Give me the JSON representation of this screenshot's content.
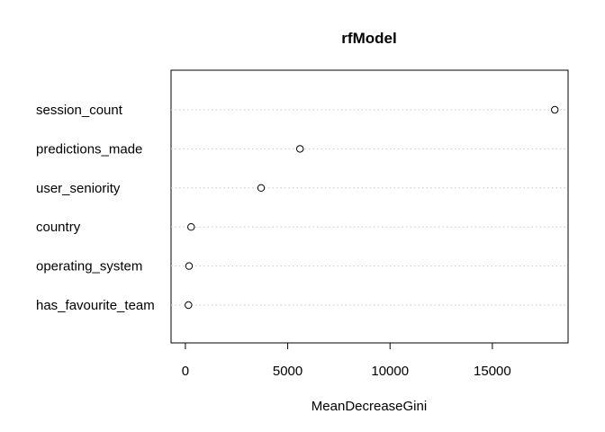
{
  "chart_data": {
    "type": "scatter",
    "title": "rfModel",
    "xlabel": "MeanDecreaseGini",
    "ylabel": "",
    "xlim": [
      -700,
      18700
    ],
    "xticks": [
      0,
      5000,
      10000,
      15000
    ],
    "xtick_labels": [
      "0",
      "5000",
      "10000",
      "15000"
    ],
    "categories": [
      "session_count",
      "predictions_made",
      "user_seniority",
      "country",
      "operating_system",
      "has_favourite_team"
    ],
    "values": [
      18050,
      5600,
      3700,
      280,
      180,
      150
    ],
    "grid": "dotted horizontal"
  }
}
